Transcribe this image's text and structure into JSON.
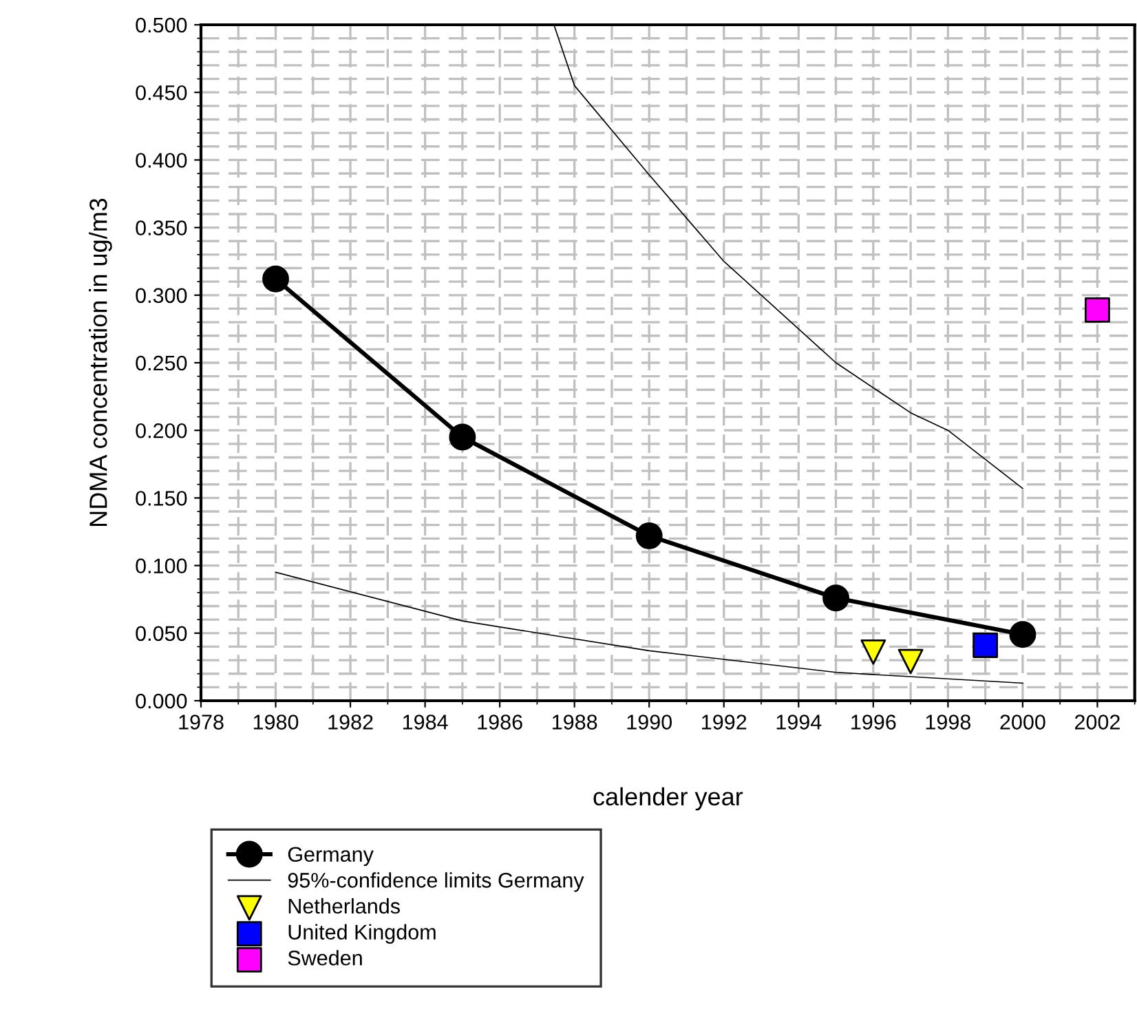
{
  "chart_data": {
    "type": "line",
    "xlabel": "calender year",
    "ylabel": "NDMA concentration in ug/m3",
    "xlim": [
      1978,
      2003
    ],
    "ylim": [
      0,
      0.5
    ],
    "xticks": [
      1978,
      1980,
      1982,
      1984,
      1986,
      1988,
      1990,
      1992,
      1994,
      1996,
      1998,
      2000,
      2002
    ],
    "yticks": [
      {
        "value": 0,
        "label": "0.000"
      },
      {
        "value": 0.05,
        "label": "0.050"
      },
      {
        "value": 0.1,
        "label": "0.100"
      },
      {
        "value": 0.15,
        "label": "0.150"
      },
      {
        "value": 0.2,
        "label": "0.200"
      },
      {
        "value": 0.25,
        "label": "0.250"
      },
      {
        "value": 0.3,
        "label": "0.300"
      },
      {
        "value": 0.35,
        "label": "0.350"
      },
      {
        "value": 0.4,
        "label": "0.400"
      },
      {
        "value": 0.45,
        "label": "0.450"
      },
      {
        "value": 0.5,
        "label": "0.500"
      }
    ],
    "grid": true,
    "legend": "bottom left",
    "series": [
      {
        "name": "Germany",
        "marker": "circle",
        "color": "#000000",
        "x": [
          1980,
          1985,
          1990,
          1995,
          2000
        ],
        "values": [
          0.312,
          0.195,
          0.122,
          0.076,
          0.049
        ]
      },
      {
        "name": "95%-confidence limits Germany",
        "marker": "none",
        "color": "#000000",
        "x": [
          1987.45,
          1988,
          1990,
          1992,
          1995,
          1997,
          1998,
          2000
        ],
        "values": [
          0.5,
          0.455,
          0.389,
          0.325,
          0.25,
          0.213,
          0.2,
          0.157
        ]
      },
      {
        "marker": "none",
        "color": "#000000",
        "x": [
          1980,
          1985,
          1990,
          1995,
          2000
        ],
        "values": [
          0.095,
          0.059,
          0.037,
          0.021,
          0.013
        ]
      },
      {
        "name": "Netherlands",
        "type": "scatter",
        "marker": "triangle",
        "color": "#ffff00",
        "x": [
          1996,
          1997
        ],
        "values": [
          0.036,
          0.029
        ]
      },
      {
        "name": "United Kingdom",
        "type": "scatter",
        "marker": "square",
        "color": "#0000ff",
        "x": [
          1999
        ],
        "values": [
          0.041
        ]
      },
      {
        "name": "Sweden",
        "type": "scatter",
        "marker": "square",
        "color": "#ff00ff",
        "x": [
          2002
        ],
        "values": [
          0.289
        ]
      }
    ]
  }
}
